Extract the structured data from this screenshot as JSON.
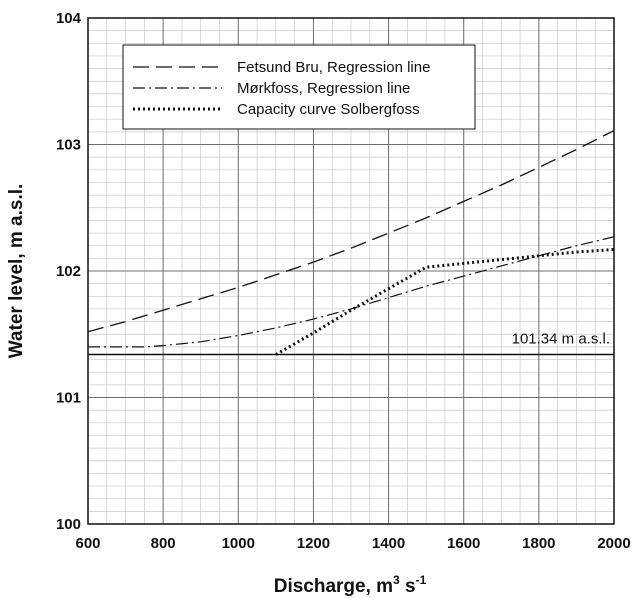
{
  "chart_data": {
    "type": "line",
    "xlabel": "Discharge, m",
    "xlabel_sup1": "3",
    "xlabel_mid": " s",
    "xlabel_sup2": "-1",
    "ylabel": "Water level, m a.s.l.",
    "xlim": [
      600,
      2000
    ],
    "ylim": [
      100,
      104
    ],
    "x_major_ticks": [
      600,
      800,
      1000,
      1200,
      1400,
      1600,
      1800,
      2000
    ],
    "y_major_ticks": [
      100,
      101,
      102,
      103,
      104
    ],
    "x_minor_step": 50,
    "y_minor_step": 0.1,
    "grid": true,
    "legend_position": "top-left",
    "series": [
      {
        "name": "Fetsund Bru, Regression line",
        "style": "dashed",
        "points": [
          [
            600,
            101.52
          ],
          [
            700,
            101.6
          ],
          [
            800,
            101.69
          ],
          [
            900,
            101.78
          ],
          [
            1000,
            101.87
          ],
          [
            1100,
            101.97
          ],
          [
            1200,
            102.07
          ],
          [
            1300,
            102.18
          ],
          [
            1400,
            102.3
          ],
          [
            1500,
            102.42
          ],
          [
            1600,
            102.55
          ],
          [
            1700,
            102.68
          ],
          [
            1800,
            102.82
          ],
          [
            1900,
            102.96
          ],
          [
            2000,
            103.11
          ]
        ]
      },
      {
        "name": "Mørkfoss, Regression line",
        "style": "dash-dot",
        "points": [
          [
            600,
            101.4
          ],
          [
            700,
            101.4
          ],
          [
            750,
            101.4
          ],
          [
            800,
            101.41
          ],
          [
            900,
            101.44
          ],
          [
            1000,
            101.49
          ],
          [
            1100,
            101.55
          ],
          [
            1200,
            101.62
          ],
          [
            1300,
            101.7
          ],
          [
            1400,
            101.79
          ],
          [
            1500,
            101.88
          ],
          [
            1600,
            101.96
          ],
          [
            1700,
            102.04
          ],
          [
            1800,
            102.12
          ],
          [
            1900,
            102.2
          ],
          [
            2000,
            102.27
          ]
        ]
      },
      {
        "name": "Capacity curve Solbergfoss",
        "style": "dotted",
        "points": [
          [
            1100,
            101.34
          ],
          [
            1200,
            101.51
          ],
          [
            1300,
            101.69
          ],
          [
            1400,
            101.86
          ],
          [
            1500,
            102.03
          ],
          [
            1600,
            102.06
          ],
          [
            1700,
            102.09
          ],
          [
            1800,
            102.12
          ],
          [
            1900,
            102.15
          ],
          [
            2000,
            102.17
          ]
        ]
      }
    ],
    "reference_line": {
      "y": 101.34,
      "label": "101.34 m a.s.l."
    }
  }
}
